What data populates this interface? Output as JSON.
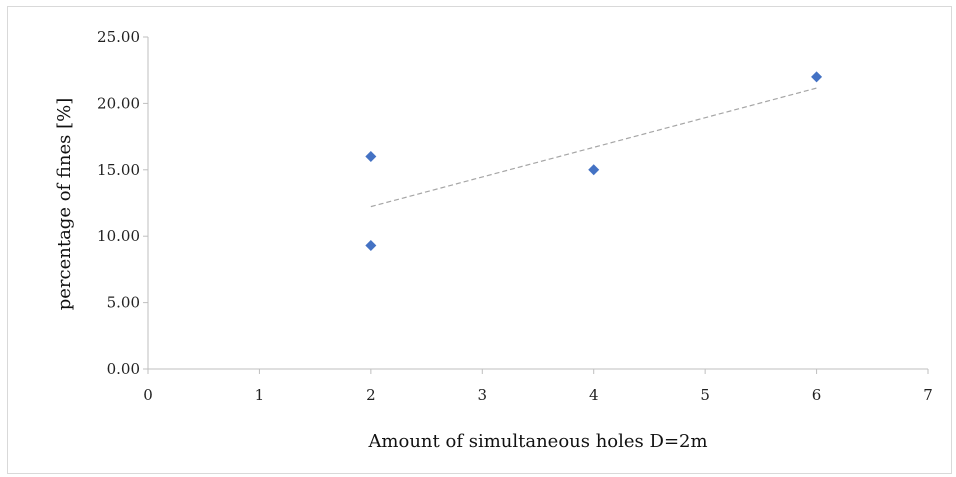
{
  "chart_data": {
    "type": "scatter",
    "title": "",
    "xlabel": "Amount of simultaneous holes D=2m",
    "ylabel": "percentage of fines [%]",
    "xlim": [
      0,
      7
    ],
    "ylim": [
      0,
      25
    ],
    "x_ticks": [
      "0",
      "1",
      "2",
      "3",
      "4",
      "5",
      "6",
      "7"
    ],
    "y_ticks": [
      "0.00",
      "5.00",
      "10.00",
      "15.00",
      "20.00",
      "25.00"
    ],
    "points": [
      {
        "x": 2,
        "y": 16.0
      },
      {
        "x": 2,
        "y": 9.3
      },
      {
        "x": 4,
        "y": 15.0
      },
      {
        "x": 6,
        "y": 22.0
      }
    ],
    "trendline": {
      "type": "linear",
      "style": "dashed",
      "color": "#a6a6a6"
    },
    "marker": {
      "shape": "diamond",
      "color": "#4472c4"
    },
    "grid": false,
    "legend": "none"
  }
}
